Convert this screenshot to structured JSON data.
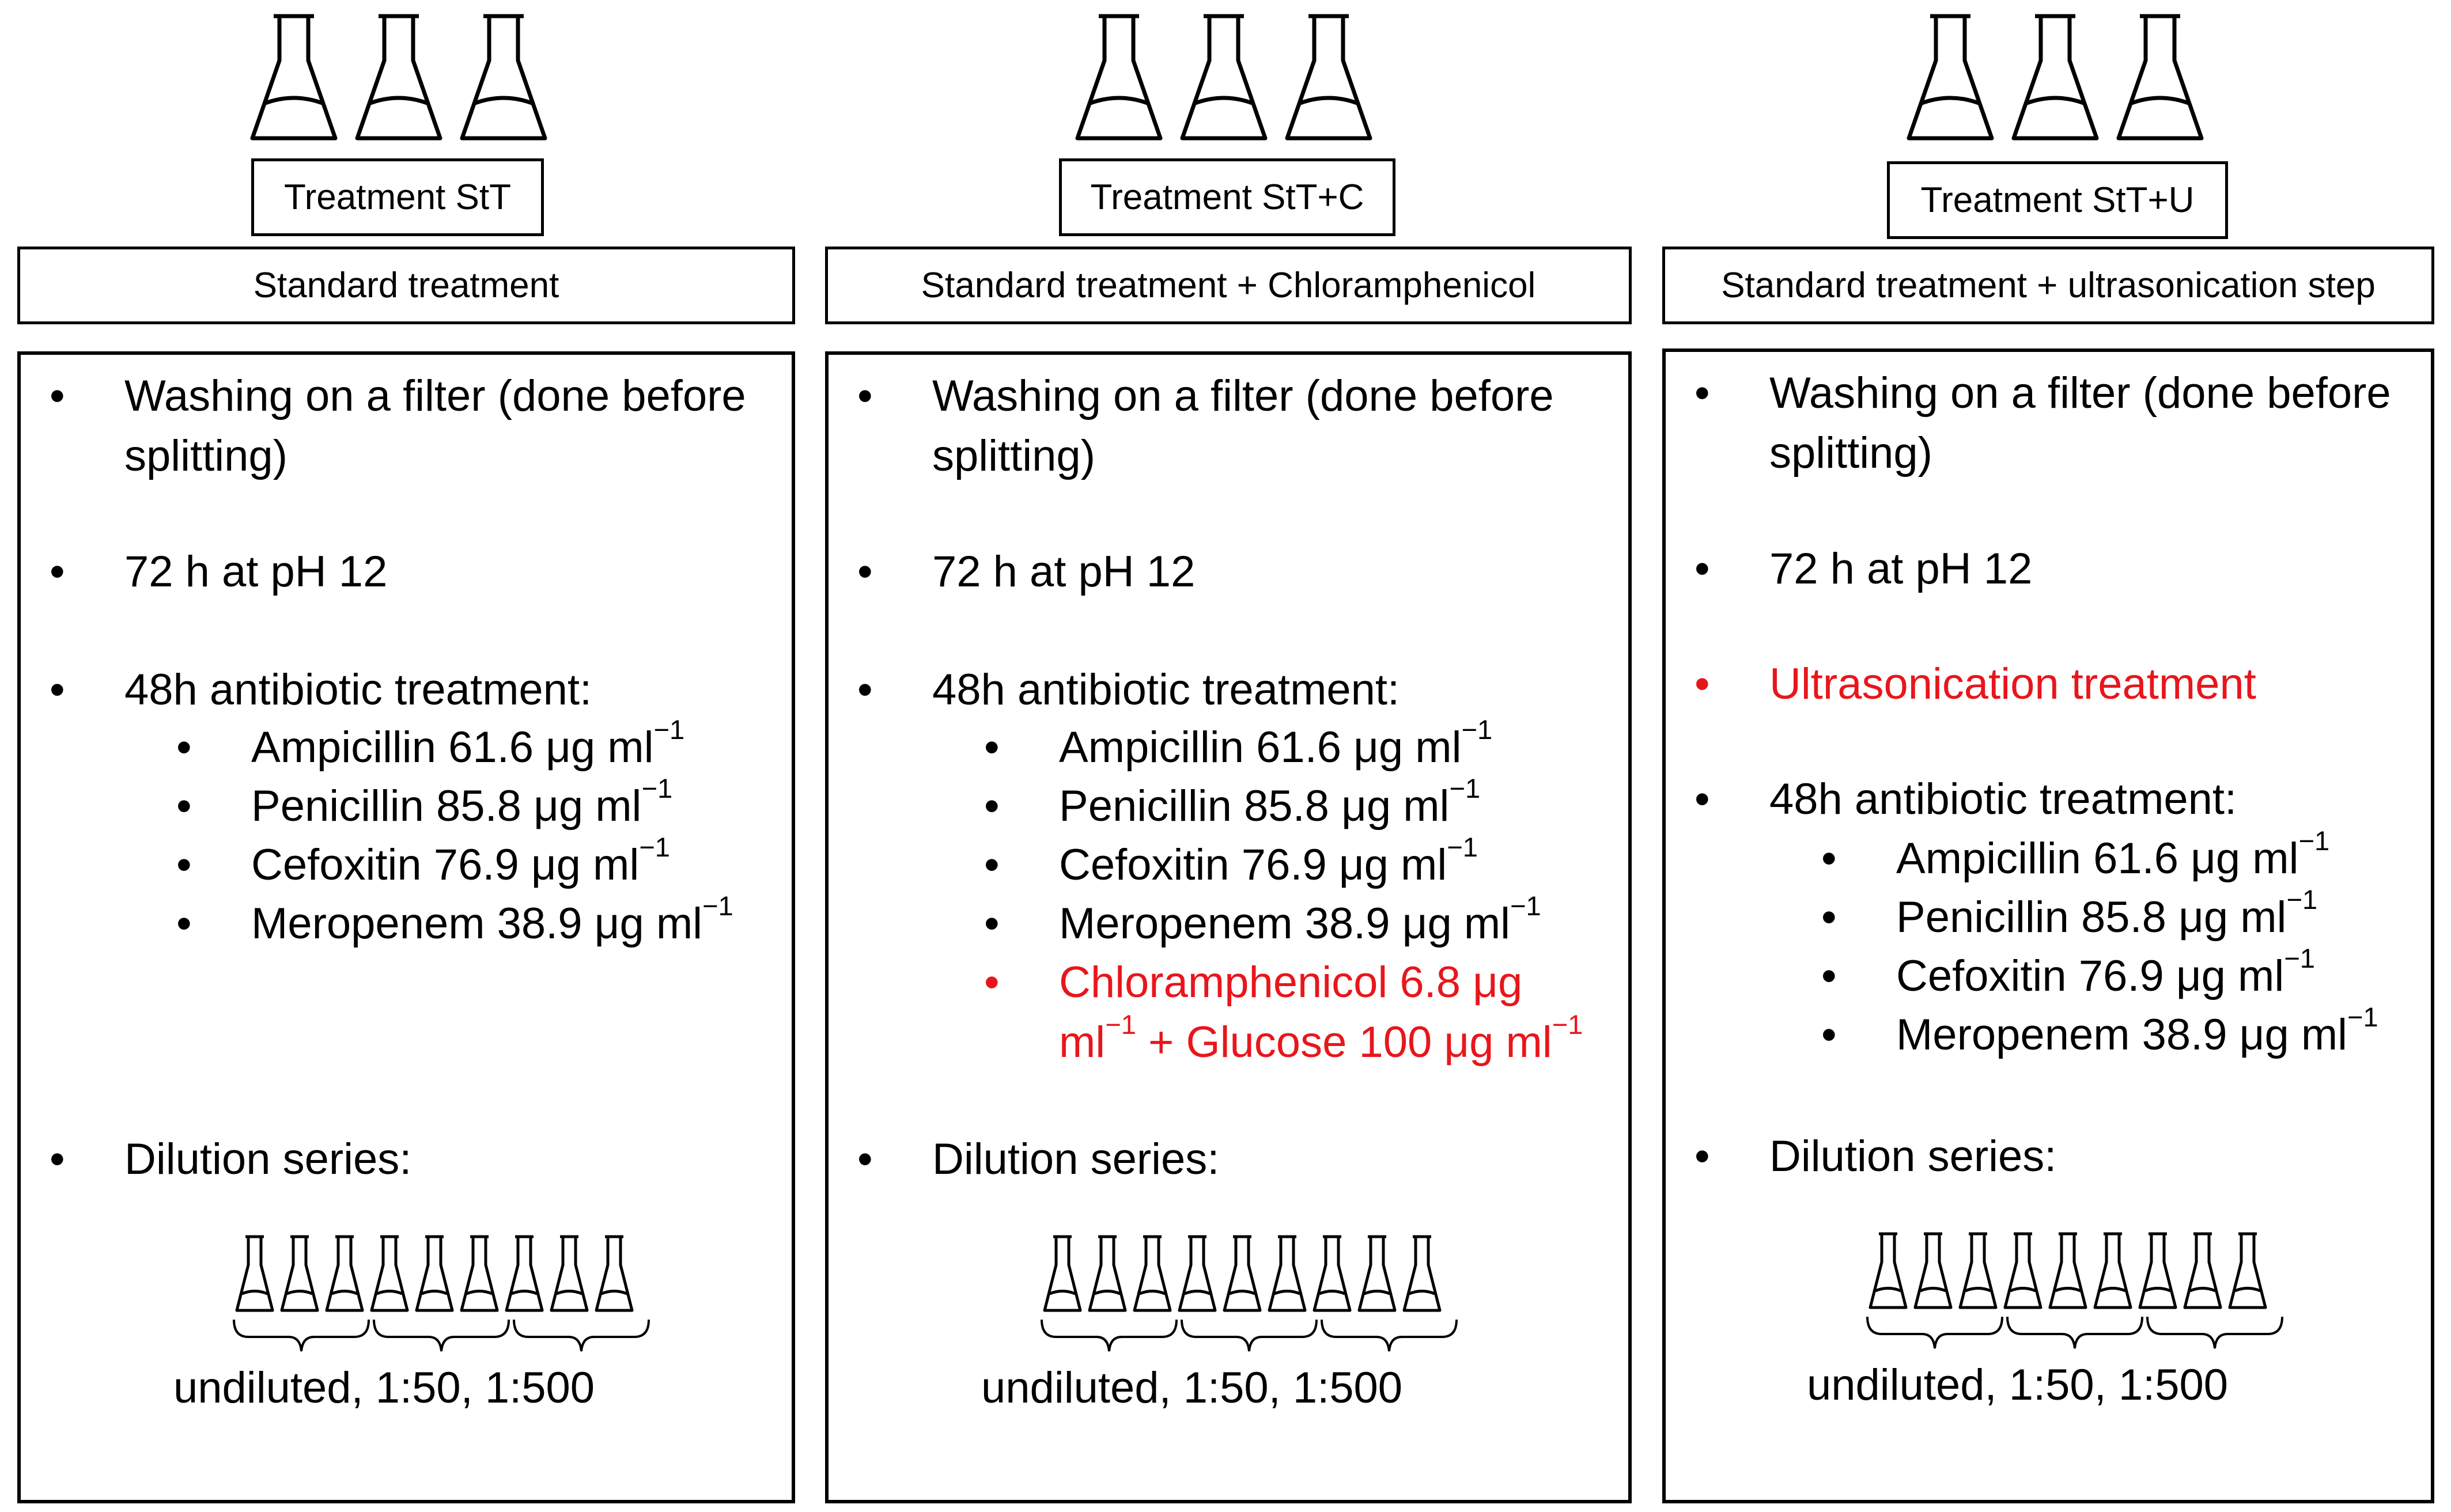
{
  "columns": [
    {
      "label": "Treatment StT",
      "title": "Standard treatment",
      "steps": {
        "washing": "Washing on a filter (done before splitting)",
        "ph": "72 h at pH 12",
        "antibiotic": "48h antibiotic treatment:",
        "dilution": "Dilution series:"
      },
      "antibiotics": [
        {
          "text": "Ampicillin 61.6 μg ml",
          "sup": "−1"
        },
        {
          "text": "Penicillin 85.8 μg ml",
          "sup": "−1"
        },
        {
          "text": "Cefoxitin 76.9 μg ml",
          "sup": "−1"
        },
        {
          "text": "Meropenem 38.9 μg ml",
          "sup": "−1"
        }
      ],
      "dilution_label": "undiluted, 1:50, 1:500"
    },
    {
      "label": "Treatment StT+C",
      "title": "Standard treatment + Chloramphenicol",
      "steps": {
        "washing": "Washing on a filter (done before splitting)",
        "ph": "72 h at pH 12",
        "antibiotic": "48h antibiotic treatment:",
        "dilution": "Dilution series:"
      },
      "antibiotics": [
        {
          "text": "Ampicillin 61.6 μg ml",
          "sup": "−1"
        },
        {
          "text": "Penicillin 85.8 μg ml",
          "sup": "−1"
        },
        {
          "text": "Cefoxitin 76.9 μg ml",
          "sup": "−1"
        },
        {
          "text": "Meropenem 38.9 μg ml",
          "sup": "−1"
        }
      ],
      "extra": {
        "line1": "Chloramphenicol 6.8 μg",
        "line2_pre": "ml",
        "line2_sup1": "−1",
        "line2_mid": " + Glucose 100 μg ml",
        "line2_sup2": "−1"
      },
      "dilution_label": "undiluted, 1:50, 1:500"
    },
    {
      "label": "Treatment StT+U",
      "title": "Standard treatment + ultrasonication step",
      "steps": {
        "washing": "Washing on a filter (done before splitting)",
        "ph": "72 h at pH 12",
        "ultrasonication": "Ultrasonication treatment",
        "antibiotic": "48h antibiotic treatment:",
        "dilution": "Dilution series:"
      },
      "antibiotics": [
        {
          "text": "Ampicillin 61.6 μg ml",
          "sup": "−1"
        },
        {
          "text": "Penicillin 85.8 μg ml",
          "sup": "−1"
        },
        {
          "text": "Cefoxitin 76.9 μg ml",
          "sup": "−1"
        },
        {
          "text": "Meropenem 38.9 μg ml",
          "sup": "−1"
        }
      ],
      "dilution_label": "undiluted, 1:50, 1:500"
    }
  ],
  "colors": {
    "highlight": "#e8161b",
    "stroke": "#000000"
  },
  "icons": {
    "flask": "erlenmeyer-flask-icon",
    "tube": "small-flask-icon",
    "brace": "curly-brace"
  }
}
